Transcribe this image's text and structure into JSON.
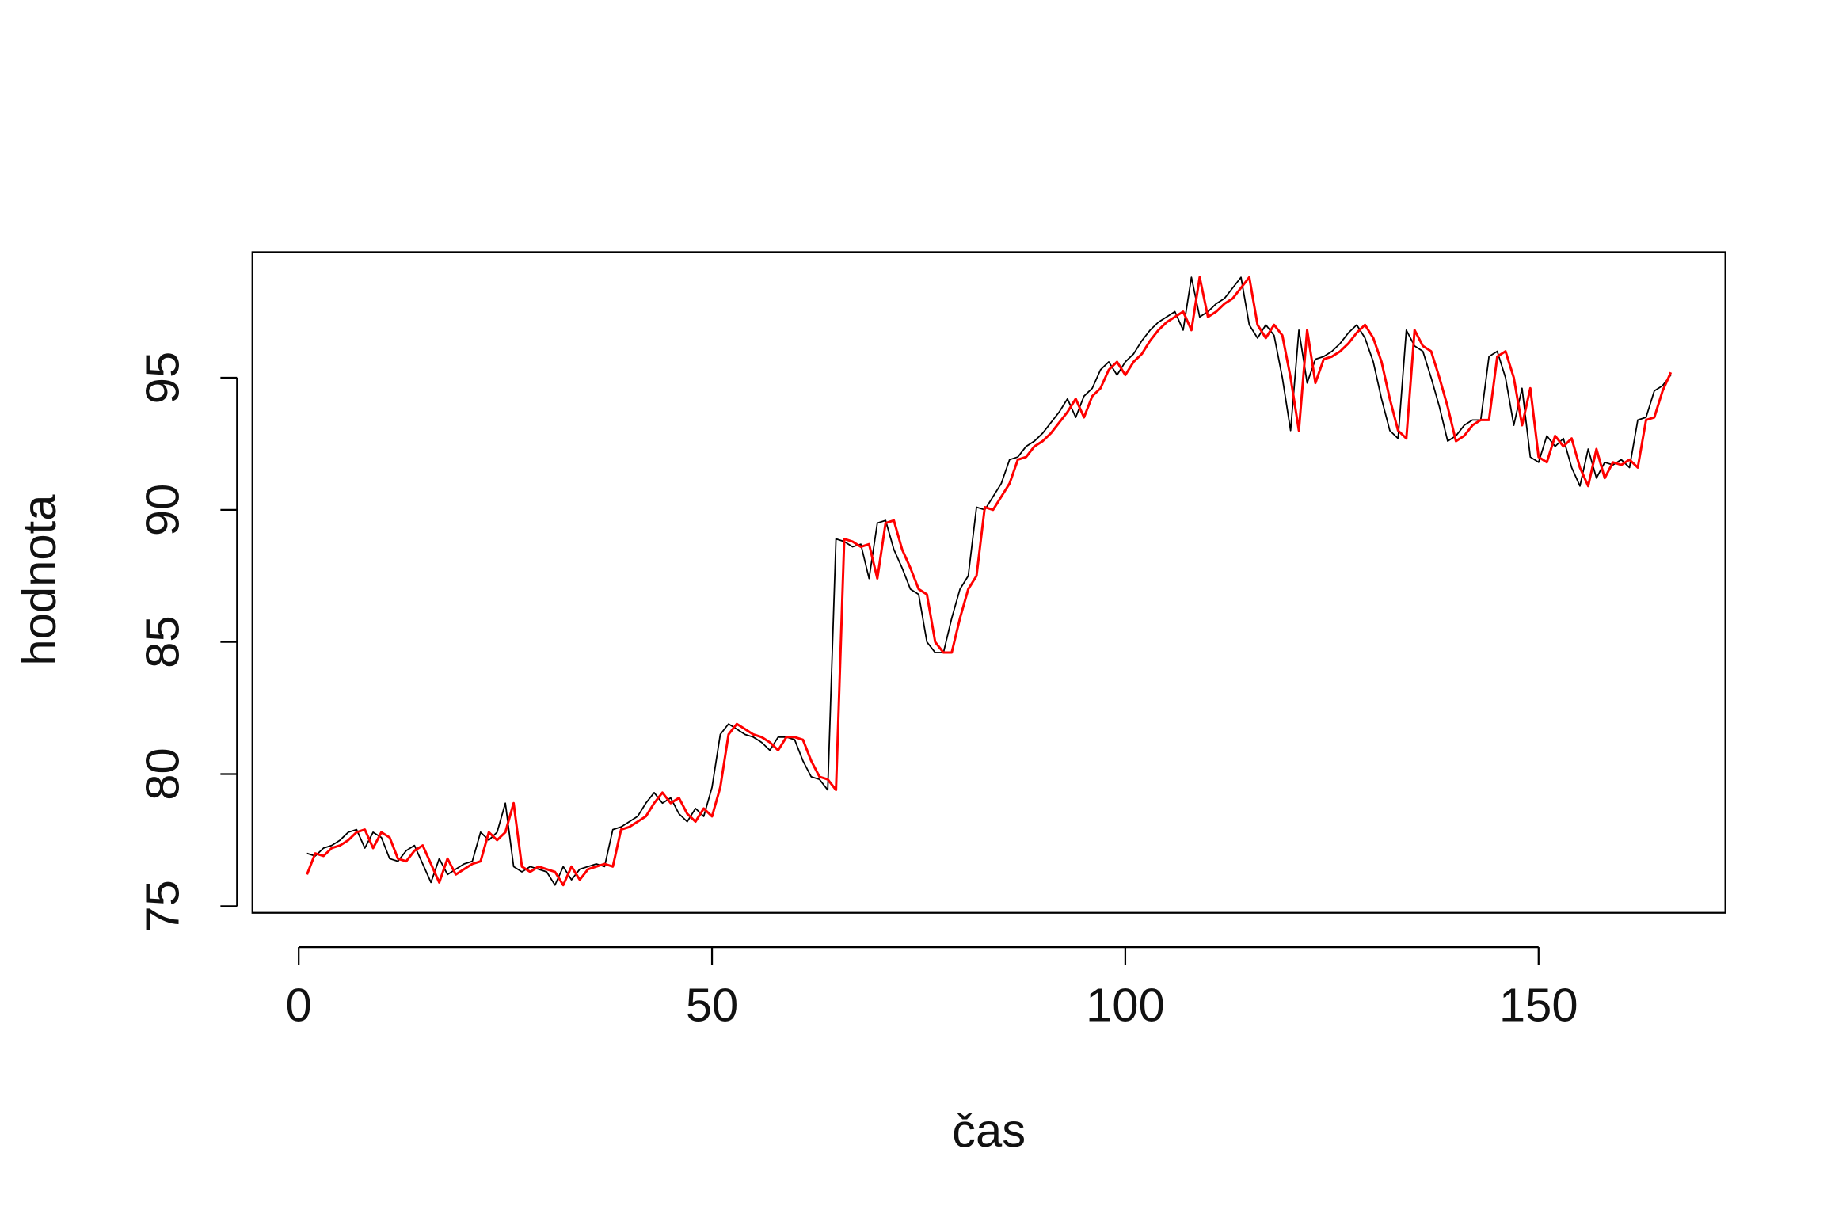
{
  "chart_data": {
    "type": "line",
    "x_label": "čas",
    "y_label": "hodnota",
    "x": [
      1,
      2,
      3,
      4,
      5,
      6,
      7,
      8,
      9,
      10,
      11,
      12,
      13,
      14,
      15,
      16,
      17,
      18,
      19,
      20,
      21,
      22,
      23,
      24,
      25,
      26,
      27,
      28,
      29,
      30,
      31,
      32,
      33,
      34,
      35,
      36,
      37,
      38,
      39,
      40,
      41,
      42,
      43,
      44,
      45,
      46,
      47,
      48,
      49,
      50,
      51,
      52,
      53,
      54,
      55,
      56,
      57,
      58,
      59,
      60,
      61,
      62,
      63,
      64,
      65,
      66,
      67,
      68,
      69,
      70,
      71,
      72,
      73,
      74,
      75,
      76,
      77,
      78,
      79,
      80,
      81,
      82,
      83,
      84,
      85,
      86,
      87,
      88,
      89,
      90,
      91,
      92,
      93,
      94,
      95,
      96,
      97,
      98,
      99,
      100,
      101,
      102,
      103,
      104,
      105,
      106,
      107,
      108,
      109,
      110,
      111,
      112,
      113,
      114,
      115,
      116,
      117,
      118,
      119,
      120,
      121,
      122,
      123,
      124,
      125,
      126,
      127,
      128,
      129,
      130,
      131,
      132,
      133,
      134,
      135,
      136,
      137,
      138,
      139,
      140,
      141,
      142,
      143,
      144,
      145,
      146,
      147,
      148,
      149,
      150,
      151,
      152,
      153,
      154,
      155,
      156,
      157,
      158,
      159,
      160,
      161,
      162,
      163,
      164,
      165,
      166
    ],
    "series": [
      {
        "color": "#000000",
        "width": 1.2,
        "values": [
          77.0,
          76.9,
          77.2,
          77.3,
          77.5,
          77.8,
          77.9,
          77.2,
          77.8,
          77.6,
          76.8,
          76.7,
          77.1,
          77.3,
          76.6,
          75.9,
          76.8,
          76.2,
          76.4,
          76.6,
          76.7,
          77.8,
          77.5,
          77.8,
          78.9,
          76.5,
          76.3,
          76.5,
          76.4,
          76.3,
          75.8,
          76.5,
          76.0,
          76.4,
          76.5,
          76.6,
          76.5,
          77.9,
          78.0,
          78.2,
          78.4,
          78.9,
          79.3,
          78.9,
          79.1,
          78.5,
          78.2,
          78.7,
          78.4,
          79.5,
          81.5,
          81.9,
          81.7,
          81.5,
          81.4,
          81.2,
          80.9,
          81.4,
          81.4,
          81.3,
          80.5,
          79.9,
          79.8,
          79.4,
          88.9,
          88.8,
          88.6,
          88.7,
          87.4,
          89.5,
          89.6,
          88.5,
          87.8,
          87.0,
          86.8,
          85.0,
          84.6,
          84.6,
          85.9,
          87.0,
          87.5,
          90.1,
          90.0,
          90.5,
          91.0,
          91.9,
          92.0,
          92.4,
          92.6,
          92.9,
          93.3,
          93.7,
          94.2,
          93.5,
          94.3,
          94.6,
          95.3,
          95.6,
          95.1,
          95.6,
          95.9,
          96.4,
          96.8,
          97.1,
          97.3,
          97.5,
          96.8,
          98.8,
          97.3,
          97.5,
          97.8,
          98.0,
          98.4,
          98.8,
          97.0,
          96.5,
          97.0,
          96.6,
          95.0,
          93.0,
          96.8,
          94.8,
          95.7,
          95.8,
          96.0,
          96.3,
          96.7,
          97.0,
          96.5,
          95.6,
          94.2,
          93.0,
          92.7,
          96.8,
          96.2,
          96.0,
          95.0,
          93.9,
          92.6,
          92.8,
          93.2,
          93.4,
          93.4,
          95.8,
          96.0,
          95.0,
          93.2,
          94.6,
          92.0,
          91.8,
          92.8,
          92.4,
          92.7,
          91.6,
          90.9,
          92.3,
          91.2,
          91.8,
          91.7,
          91.9,
          91.6,
          93.4,
          93.5,
          94.5,
          94.7,
          95.1
        ]
      },
      {
        "color": "#ff0000",
        "width": 2,
        "values": [
          76.2,
          77.0,
          76.9,
          77.2,
          77.3,
          77.5,
          77.8,
          77.9,
          77.2,
          77.8,
          77.6,
          76.8,
          76.7,
          77.1,
          77.3,
          76.6,
          75.9,
          76.8,
          76.2,
          76.4,
          76.6,
          76.7,
          77.8,
          77.5,
          77.8,
          78.9,
          76.5,
          76.3,
          76.5,
          76.4,
          76.3,
          75.8,
          76.5,
          76.0,
          76.4,
          76.5,
          76.6,
          76.5,
          77.9,
          78.0,
          78.2,
          78.4,
          78.9,
          79.3,
          78.9,
          79.1,
          78.5,
          78.2,
          78.7,
          78.4,
          79.5,
          81.5,
          81.9,
          81.7,
          81.5,
          81.4,
          81.2,
          80.9,
          81.4,
          81.4,
          81.3,
          80.5,
          79.9,
          79.8,
          79.4,
          88.9,
          88.8,
          88.6,
          88.7,
          87.4,
          89.5,
          89.6,
          88.5,
          87.8,
          87.0,
          86.8,
          85.0,
          84.6,
          84.6,
          85.9,
          87.0,
          87.5,
          90.1,
          90.0,
          90.5,
          91.0,
          91.9,
          92.0,
          92.4,
          92.6,
          92.9,
          93.3,
          93.7,
          94.2,
          93.5,
          94.3,
          94.6,
          95.3,
          95.6,
          95.1,
          95.6,
          95.9,
          96.4,
          96.8,
          97.1,
          97.3,
          97.5,
          96.8,
          98.8,
          97.3,
          97.5,
          97.8,
          98.0,
          98.4,
          98.8,
          97.0,
          96.5,
          97.0,
          96.6,
          95.0,
          93.0,
          96.8,
          94.8,
          95.7,
          95.8,
          96.0,
          96.3,
          96.7,
          97.0,
          96.5,
          95.6,
          94.2,
          93.0,
          92.7,
          96.8,
          96.2,
          96.0,
          95.0,
          93.9,
          92.6,
          92.8,
          93.2,
          93.4,
          93.4,
          95.8,
          96.0,
          95.0,
          93.2,
          94.6,
          92.0,
          91.8,
          92.8,
          92.4,
          92.7,
          91.6,
          90.9,
          92.3,
          91.2,
          91.8,
          91.7,
          91.9,
          91.6,
          93.4,
          93.5,
          94.5,
          95.2
        ]
      }
    ],
    "xlim": [
      -5.6,
      172.6
    ],
    "ylim": [
      74.75,
      99.75
    ],
    "xticks": [
      0,
      50,
      100,
      150
    ],
    "yticks": [
      75,
      80,
      85,
      90,
      95
    ]
  }
}
